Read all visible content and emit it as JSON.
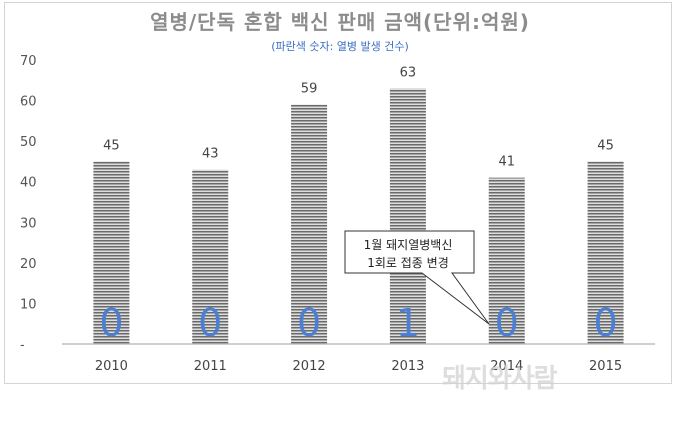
{
  "title": "열병/단독 혼합 백신 판매 금액(단위:억원)",
  "subtitle": "(파란색 숫자: 열병 발생 건수)",
  "watermark": "돼지와사람",
  "callout": {
    "line1": "1월 돼지열병백신",
    "line2": "1회로 접종 변경"
  },
  "chart_data": {
    "type": "bar",
    "categories": [
      "2010",
      "2011",
      "2012",
      "2013",
      "2014",
      "2015"
    ],
    "series": [
      {
        "values": [
          45,
          43,
          59,
          63,
          41,
          45
        ]
      }
    ],
    "outbreak_counts": [
      0,
      0,
      0,
      1,
      0,
      0
    ],
    "ylim": [
      0,
      70
    ],
    "yticks": [
      "-",
      "10",
      "20",
      "30",
      "40",
      "50",
      "60",
      "70"
    ],
    "grid": false,
    "colors": {
      "bar_dark": "#6e6e6e",
      "bar_light": "#d9d9d9",
      "count_text": "#4a7fd4",
      "axis": "#bfbfbf"
    }
  }
}
